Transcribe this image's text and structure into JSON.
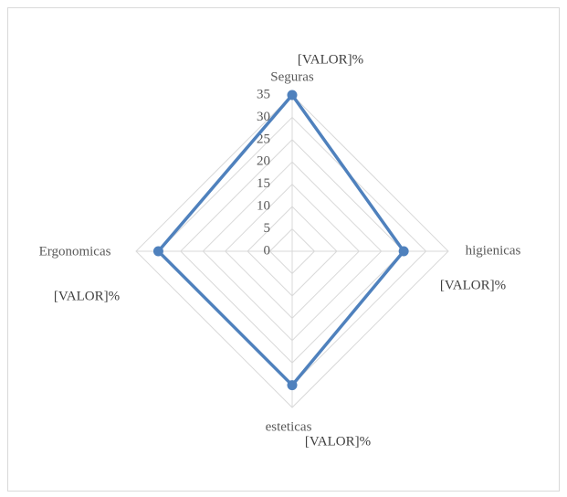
{
  "chart_data": {
    "type": "radar",
    "categories": [
      "Seguras",
      "higienicas",
      "esteticas",
      "Ergonomicas"
    ],
    "values": [
      35,
      25,
      30,
      30
    ],
    "value_labels": [
      "[VALOR]%",
      "[VALOR]%",
      "[VALOR]%",
      "[VALOR]%"
    ],
    "color": "#4f81bd",
    "ylim": [
      0,
      35
    ],
    "yticks": [
      0,
      5,
      10,
      15,
      20,
      25,
      30,
      35
    ],
    "grid": true
  }
}
